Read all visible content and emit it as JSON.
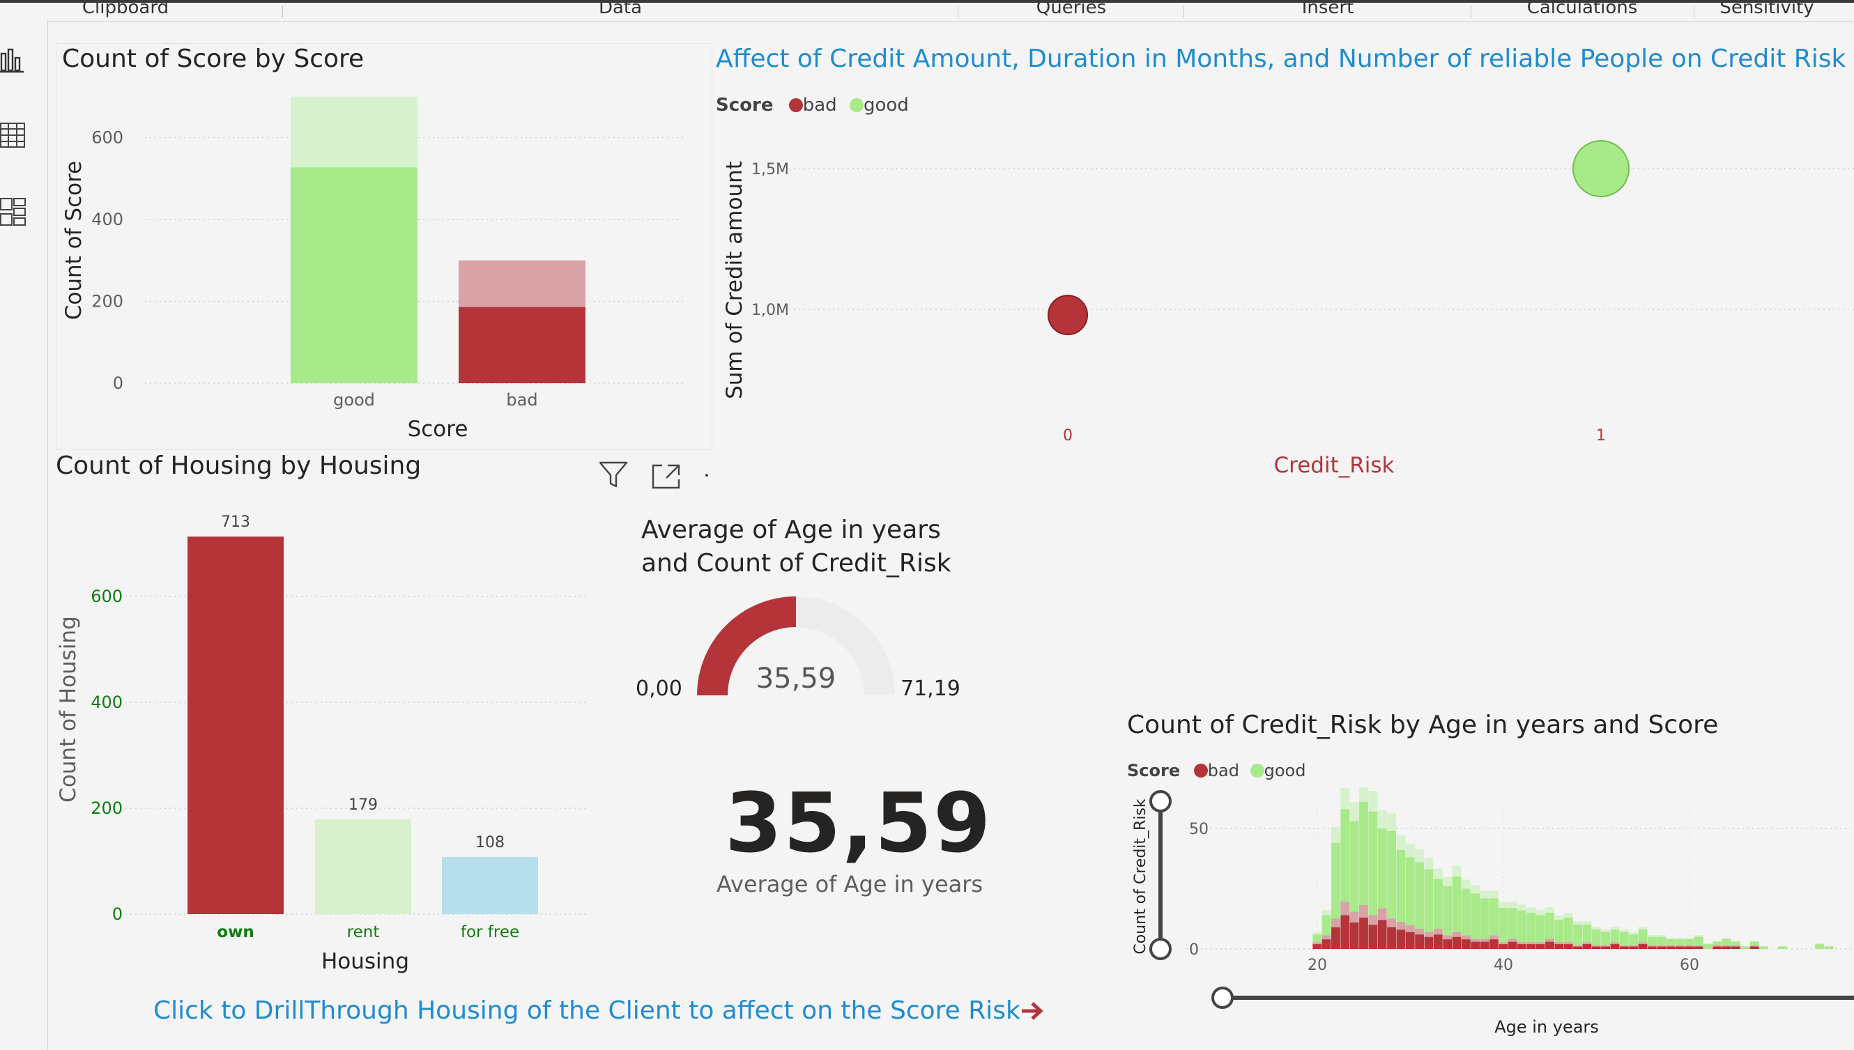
{
  "ribbon": {
    "tabs": [
      "Clipboard",
      "Data",
      "Queries",
      "Insert",
      "Calculations",
      "Sensitivity"
    ]
  },
  "rail": {
    "icons": [
      "report-view-icon",
      "table-view-icon",
      "model-view-icon"
    ]
  },
  "score_chart": {
    "title": "Count of Score by Score",
    "xlabel": "Score",
    "ylabel": "Count of Score"
  },
  "scatter_chart": {
    "title": "Affect of Credit Amount, Duration in Months, and Number of reliable People on Credit Risk",
    "legend_title": "Score",
    "xlabel": "Credit_Risk",
    "ylabel": "Sum of Credit amount"
  },
  "housing_chart": {
    "title": "Count of Housing by Housing",
    "xlabel": "Housing",
    "ylabel": "Count of Housing"
  },
  "gauge": {
    "title_line1": "Average of Age in years",
    "title_line2": "and Count of Credit_Risk",
    "min_label": "0,00",
    "max_label": "71,19",
    "value_label": "35,59"
  },
  "card": {
    "value": "35,59",
    "label": "Average of Age in years"
  },
  "histogram": {
    "title": "Count of Credit_Risk by Age in years and Score",
    "legend_title": "Score",
    "xlabel": "Age in years",
    "ylabel": "Count of Credit_Risk"
  },
  "drillthrough": {
    "text": "Click to DrillThrough Housing of the Client to affect on the Score Risk"
  },
  "colors": {
    "bad": "#b5343a",
    "bad_light": "#d9a2a6",
    "good": "#a8e98a",
    "good_light": "#d6f1cb",
    "rent": "#d6f1cb",
    "for_free": "#b7e0ec",
    "title_blue": "#1f8ccf",
    "axis_red": "#b5343a",
    "tick_green": "#107c10"
  },
  "chart_data": [
    {
      "type": "bar",
      "title": "Count of Score by Score",
      "xlabel": "Score",
      "ylabel": "Count of Score",
      "categories": [
        "good",
        "bad"
      ],
      "series": [
        {
          "values": [
            700,
            300
          ]
        },
        {
          "values": [
            527,
            186
          ]
        }
      ],
      "ylim": [
        0,
        700
      ],
      "yticks": [
        "0",
        "200",
        "400",
        "600"
      ]
    },
    {
      "type": "scatter",
      "title": "Affect of Credit Amount, Duration in Months, and Number of reliable People on Credit Risk",
      "xlabel": "Credit_Risk",
      "ylabel": "Sum of Credit amount",
      "series": [
        {
          "name": "bad",
          "x": [
            0
          ],
          "y": [
            980000
          ]
        },
        {
          "name": "good",
          "x": [
            1
          ],
          "y": [
            1500000
          ]
        }
      ],
      "x_categories": [
        "0",
        "1"
      ],
      "yticks": [
        "1,0M",
        "1,5M"
      ]
    },
    {
      "type": "bar",
      "title": "Count of Housing by Housing",
      "xlabel": "Housing",
      "ylabel": "Count of Housing",
      "categories": [
        "own",
        "rent",
        "for free"
      ],
      "values": [
        713,
        179,
        108
      ],
      "data_labels": [
        "713",
        "179",
        "108"
      ],
      "ylim": [
        0,
        780
      ],
      "yticks": [
        "0",
        "200",
        "400",
        "600"
      ]
    },
    {
      "type": "gauge",
      "min": 0,
      "max": 71.19,
      "value": 35.59
    },
    {
      "type": "bar",
      "title": "Count of Credit_Risk by Age in years and Score",
      "xlabel": "Age in years",
      "ylabel": "Count of Credit_Risk",
      "stacked": true,
      "x": [
        20,
        21,
        22,
        23,
        24,
        25,
        26,
        27,
        28,
        29,
        30,
        31,
        32,
        33,
        34,
        35,
        36,
        37,
        38,
        39,
        40,
        41,
        42,
        43,
        44,
        45,
        46,
        47,
        48,
        49,
        50,
        51,
        52,
        53,
        54,
        55,
        56,
        57,
        58,
        59,
        60,
        61,
        62,
        63,
        64,
        65,
        66,
        67,
        68,
        70,
        74,
        75
      ],
      "series": [
        {
          "name": "bad",
          "values": [
            2,
            4,
            9,
            14,
            11,
            13,
            10,
            12,
            9,
            8,
            7,
            6,
            5,
            6,
            4,
            5,
            4,
            3,
            3,
            4,
            2,
            3,
            2,
            2,
            2,
            3,
            2,
            2,
            1,
            2,
            1,
            1,
            2,
            1,
            1,
            2,
            1,
            1,
            1,
            1,
            1,
            1,
            0,
            1,
            1,
            1,
            0,
            1,
            0,
            0,
            0,
            0
          ]
        },
        {
          "name": "good",
          "values": [
            4,
            10,
            35,
            44,
            42,
            48,
            47,
            38,
            40,
            33,
            31,
            30,
            28,
            23,
            22,
            25,
            21,
            20,
            18,
            17,
            15,
            14,
            14,
            13,
            12,
            12,
            10,
            11,
            9,
            8,
            7,
            6,
            6,
            6,
            5,
            6,
            4,
            4,
            3,
            3,
            3,
            4,
            2,
            2,
            3,
            2,
            1,
            2,
            1,
            1,
            2,
            1
          ]
        }
      ],
      "xticks": [
        "20",
        "40",
        "60"
      ],
      "yticks": [
        "0",
        "50"
      ]
    }
  ]
}
